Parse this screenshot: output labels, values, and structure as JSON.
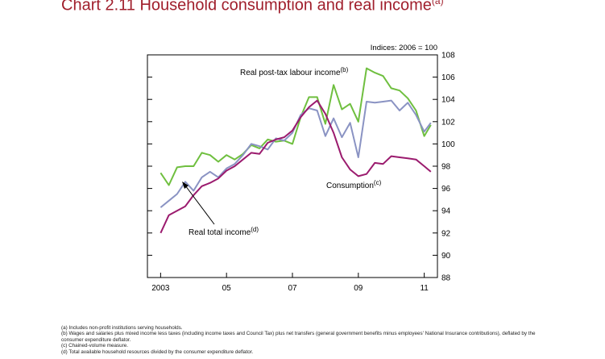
{
  "header": {
    "title": "Chart 2.11  Household consumption and real income",
    "title_sup": "(a)"
  },
  "chart_data": {
    "type": "line",
    "title": "Chart 2.11  Household consumption and real income",
    "units_label": "Indices:  2006 = 100",
    "ylim": [
      88,
      108
    ],
    "yticks": [
      "88",
      "90",
      "92",
      "94",
      "96",
      "98",
      "100",
      "102",
      "104",
      "106",
      "108"
    ],
    "xlim": [
      2002.6,
      2011.4
    ],
    "xticks": [
      {
        "value": 2003,
        "label": "2003"
      },
      {
        "value": 2005,
        "label": "05"
      },
      {
        "value": 2007,
        "label": "07"
      },
      {
        "value": 2009,
        "label": "09"
      },
      {
        "value": 2011,
        "label": "11"
      }
    ],
    "series": [
      {
        "name": "Real post-tax labour income",
        "note": "(b)",
        "color": "#6fbf3f",
        "x": [
          2003.0,
          2003.25,
          2003.5,
          2003.75,
          2004.0,
          2004.25,
          2004.5,
          2004.75,
          2005.0,
          2005.25,
          2005.5,
          2005.75,
          2006.0,
          2006.25,
          2006.5,
          2006.75,
          2007.0,
          2007.25,
          2007.5,
          2007.75,
          2008.0,
          2008.25,
          2008.5,
          2008.75,
          2009.0,
          2009.25,
          2009.5,
          2009.75,
          2010.0,
          2010.25,
          2010.5,
          2010.75,
          2011.0,
          2011.2
        ],
        "y": [
          97.4,
          96.3,
          97.9,
          98.0,
          98.0,
          99.2,
          99.0,
          98.4,
          99.0,
          98.6,
          99.1,
          99.9,
          99.6,
          100.4,
          100.2,
          100.3,
          100.0,
          102.4,
          104.2,
          104.2,
          101.8,
          105.3,
          103.1,
          103.6,
          102.0,
          106.8,
          106.4,
          106.1,
          105.0,
          104.8,
          104.1,
          103.0,
          100.7,
          101.7
        ]
      },
      {
        "name": "Real total income",
        "note": "(d)",
        "color": "#8a93c3",
        "x": [
          2003.0,
          2003.25,
          2003.5,
          2003.75,
          2004.0,
          2004.25,
          2004.5,
          2004.75,
          2005.0,
          2005.25,
          2005.5,
          2005.75,
          2006.0,
          2006.25,
          2006.5,
          2006.75,
          2007.0,
          2007.25,
          2007.5,
          2007.75,
          2008.0,
          2008.25,
          2008.5,
          2008.75,
          2009.0,
          2009.25,
          2009.5,
          2009.75,
          2010.0,
          2010.25,
          2010.5,
          2010.75,
          2011.0,
          2011.2
        ],
        "y": [
          94.3,
          94.9,
          95.5,
          96.6,
          95.8,
          97.0,
          97.5,
          97.0,
          97.8,
          98.2,
          99.0,
          100.0,
          99.8,
          99.5,
          100.5,
          100.3,
          101.0,
          102.6,
          103.2,
          103.0,
          100.7,
          102.3,
          100.6,
          101.9,
          98.8,
          103.8,
          103.7,
          103.8,
          103.9,
          103.0,
          103.7,
          102.6,
          101.1,
          101.9
        ]
      },
      {
        "name": "Consumption",
        "note": "(c)",
        "color": "#9b1b6e",
        "x": [
          2003.0,
          2003.25,
          2003.5,
          2003.75,
          2004.0,
          2004.25,
          2004.5,
          2004.75,
          2005.0,
          2005.25,
          2005.5,
          2005.75,
          2006.0,
          2006.25,
          2006.5,
          2006.75,
          2007.0,
          2007.25,
          2007.5,
          2007.75,
          2008.0,
          2008.25,
          2008.5,
          2008.75,
          2009.0,
          2009.25,
          2009.5,
          2009.75,
          2010.0,
          2010.25,
          2010.5,
          2010.75,
          2011.0,
          2011.2
        ],
        "y": [
          92.0,
          93.6,
          94.0,
          94.4,
          95.4,
          96.2,
          96.5,
          96.9,
          97.6,
          98.0,
          98.6,
          99.2,
          99.1,
          100.1,
          100.4,
          100.6,
          101.2,
          102.4,
          103.3,
          103.9,
          102.7,
          101.0,
          98.8,
          97.7,
          97.1,
          97.3,
          98.3,
          98.2,
          98.9,
          98.8,
          98.7,
          98.6,
          98.0,
          97.5
        ]
      }
    ],
    "labels": {
      "labour": "Real post-tax labour income",
      "labour_sup": "(b)",
      "total": "Real total income",
      "total_sup": "(d)",
      "consumption": "Consumption",
      "consumption_sup": "(c)"
    },
    "grid": false,
    "legend": "inline labels"
  },
  "footnotes": [
    "(a) Includes non-profit institutions serving households.",
    "(b) Wages and salaries plus mixed income less taxes (including income taxes and Council Tax) plus net transfers (general government benefits minus employees' National Insurance contributions), deflated by the consumer expenditure deflator.",
    "(c) Chained-volume measure.",
    "(d) Total available household resources divided by the consumer expenditure deflator."
  ]
}
